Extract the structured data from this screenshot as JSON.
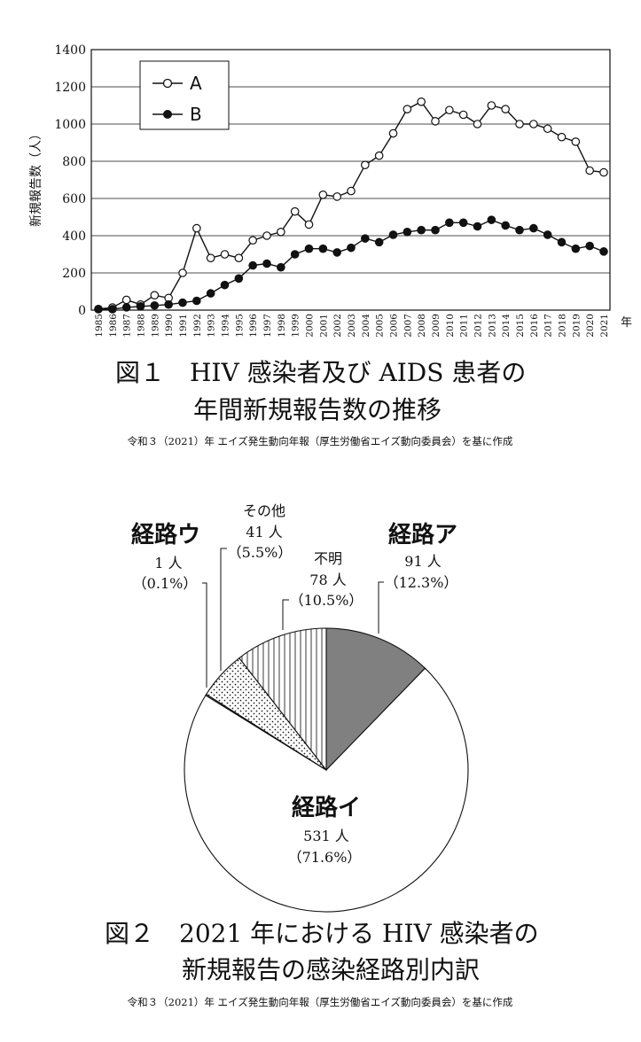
{
  "chart_data": [
    {
      "type": "line",
      "title": "図１　HIV 感染者及び AIDS 患者の",
      "title_line2": "年間新規報告数の推移",
      "source": "令和３（2021）年 エイズ発生動向年報（厚生労働省エイズ動向委員会）を基に作成",
      "ylabel": "新規報告数（人）",
      "xunit": "年",
      "ylim": [
        0,
        1400
      ],
      "yticks": [
        0,
        200,
        400,
        600,
        800,
        1000,
        1200,
        1400
      ],
      "grid": true,
      "legend_position": "top-left",
      "x": [
        "1985",
        "1986",
        "1987",
        "1988",
        "1989",
        "1990",
        "1991",
        "1992",
        "1993",
        "1994",
        "1995",
        "1996",
        "1997",
        "1998",
        "1999",
        "2000",
        "2001",
        "2002",
        "2003",
        "2004",
        "2005",
        "2006",
        "2007",
        "2008",
        "2009",
        "2010",
        "2011",
        "2012",
        "2013",
        "2014",
        "2015",
        "2016",
        "2017",
        "2018",
        "2019",
        "2020",
        "2021"
      ],
      "series": [
        {
          "name": "A",
          "marker": "open-circle",
          "values": [
            6,
            14,
            55,
            30,
            80,
            65,
            200,
            440,
            280,
            300,
            280,
            375,
            400,
            420,
            530,
            460,
            620,
            610,
            640,
            780,
            830,
            950,
            1080,
            1120,
            1015,
            1075,
            1050,
            1000,
            1100,
            1080,
            1000,
            1000,
            975,
            930,
            905,
            750,
            740
          ]
        },
        {
          "name": "B",
          "marker": "filled-circle",
          "values": [
            5,
            5,
            15,
            20,
            25,
            30,
            40,
            50,
            90,
            135,
            170,
            240,
            250,
            230,
            300,
            330,
            330,
            310,
            335,
            385,
            365,
            405,
            420,
            430,
            430,
            470,
            470,
            450,
            485,
            455,
            430,
            440,
            405,
            365,
            330,
            345,
            315
          ]
        }
      ]
    },
    {
      "type": "pie",
      "title": "図２　2021 年における HIV 感染者の",
      "title_line2": "新規報告の感染経路別内訳",
      "source": "令和３（2021）年 エイズ発生動向年報（厚生労働省エイズ動向委員会）を基に作成",
      "slices": [
        {
          "name": "経路ア",
          "count": "91 人",
          "pct": "（12.3%）",
          "value": 91,
          "fill": "#808080"
        },
        {
          "name": "経路イ",
          "count": "531 人",
          "pct": "（71.6%）",
          "value": 531,
          "fill": "#ffffff"
        },
        {
          "name": "経路ウ",
          "count": "1 人",
          "pct": "（0.1%）",
          "value": 1,
          "fill": "#ffffff"
        },
        {
          "name": "その他",
          "count": "41 人",
          "pct": "（5.5%）",
          "value": 41,
          "fill": "dots"
        },
        {
          "name": "不明",
          "count": "78 人",
          "pct": "（10.5%）",
          "value": 78,
          "fill": "vertical-lines"
        }
      ],
      "slice_order_clockwise_from_top": [
        "経路ア",
        "経路イ",
        "経路ウ",
        "その他",
        "不明"
      ]
    }
  ]
}
